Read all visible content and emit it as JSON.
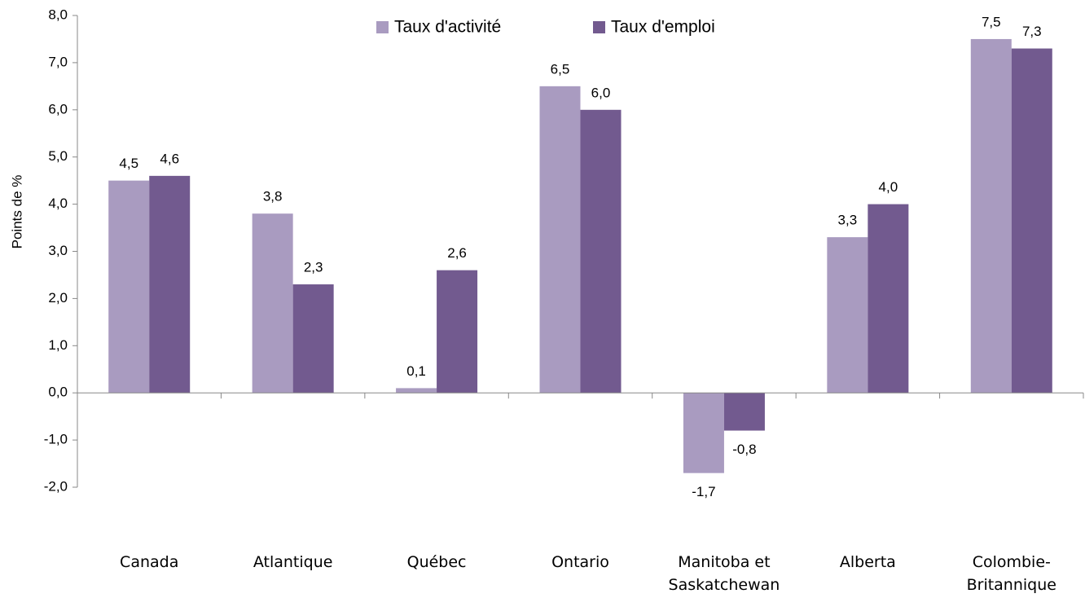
{
  "chart_data": {
    "type": "bar",
    "y_axis_label": "Points de %",
    "categories": [
      "Canada",
      "Atlantique",
      "Québec",
      "Ontario",
      "Manitoba et Saskatchewan",
      "Alberta",
      "Colombie-Britannique"
    ],
    "series": [
      {
        "name": "Taux d'activité",
        "color": "#a99bc0",
        "values": [
          4.5,
          3.8,
          0.1,
          6.5,
          -1.7,
          3.3,
          7.5
        ],
        "value_labels": [
          "4,5",
          "3,8",
          "0,1",
          "6,5",
          "-1,7",
          "3,3",
          "7,5"
        ]
      },
      {
        "name": "Taux d'emploi",
        "color": "#725a8f",
        "values": [
          4.6,
          2.3,
          2.6,
          6.0,
          -0.8,
          4.0,
          7.3
        ],
        "value_labels": [
          "4,6",
          "2,3",
          "2,6",
          "6,0",
          "-0,8",
          "4,0",
          "7,3"
        ]
      }
    ],
    "ylim": [
      -2,
      8
    ],
    "yticks": [
      {
        "value": -2,
        "label": "-2,0"
      },
      {
        "value": -1,
        "label": "-1,0"
      },
      {
        "value": 0,
        "label": "0,0"
      },
      {
        "value": 1,
        "label": "1,0"
      },
      {
        "value": 2,
        "label": "2,0"
      },
      {
        "value": 3,
        "label": "3,0"
      },
      {
        "value": 4,
        "label": "4,0"
      },
      {
        "value": 5,
        "label": "5,0"
      },
      {
        "value": 6,
        "label": "6,0"
      },
      {
        "value": 7,
        "label": "7,0"
      },
      {
        "value": 8,
        "label": "8,0"
      }
    ],
    "legend": "top"
  }
}
